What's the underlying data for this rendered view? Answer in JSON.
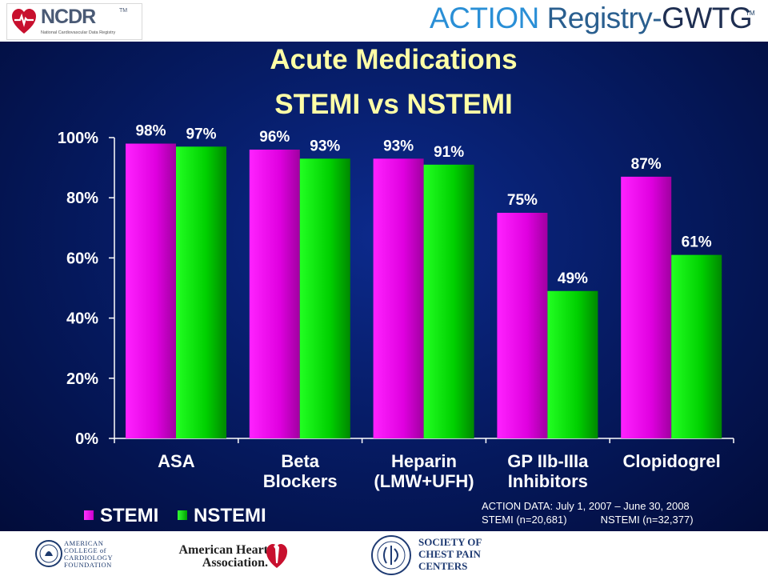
{
  "header": {
    "ncdr_name": "NCDR",
    "ncdr_tm": "TM",
    "ncdr_subtitle": "National Cardiovascular Data Registry",
    "action_word": "ACTION",
    "registry_word": "Registry",
    "dash": "-",
    "gwtg_word": "GWTG",
    "action_tm": "TM"
  },
  "slide": {
    "title_line1": "Acute Medications",
    "title_line2": "STEMI vs NSTEMI",
    "note_line1": "ACTION DATA: July 1, 2007 – June 30, 2008",
    "note_stemi": "STEMI (n=20,681)",
    "note_nstemi": "NSTEMI (n=32,377)"
  },
  "chart_data": {
    "type": "bar",
    "categories": [
      [
        "ASA"
      ],
      [
        "Beta",
        "Blockers"
      ],
      [
        "Heparin",
        "(LMW+UFH)"
      ],
      [
        "GP IIb-IIIa",
        "Inhibitors"
      ],
      [
        "Clopidogrel"
      ]
    ],
    "series": [
      {
        "name": "STEMI",
        "values": [
          98,
          96,
          93,
          75,
          87
        ],
        "labels": [
          "98%",
          "96%",
          "93%",
          "75%",
          "87%"
        ],
        "color": "#ff00ff"
      },
      {
        "name": "NSTEMI",
        "values": [
          97,
          93,
          91,
          49,
          61
        ],
        "labels": [
          "97%",
          "93%",
          "91%",
          "49%",
          "61%"
        ],
        "color": "#00e000"
      }
    ],
    "ylim": [
      0,
      100
    ],
    "yticks": [
      "0%",
      "20%",
      "40%",
      "60%",
      "80%",
      "100%"
    ],
    "ytick_values": [
      0,
      20,
      40,
      60,
      80,
      100
    ],
    "legend_position": "bottom-left",
    "grid": false,
    "axis_color": "#ffffff"
  },
  "footer": {
    "acc_line1": "AMERICAN",
    "acc_line2": "COLLEGE of",
    "acc_line3": "CARDIOLOGY",
    "acc_line4": "FOUNDATION",
    "aha_line1": "American Heart",
    "aha_line2": "Association.",
    "scpc_line1": "SOCIETY OF",
    "scpc_line2": "CHEST PAIN",
    "scpc_line3": "CENTERS"
  }
}
